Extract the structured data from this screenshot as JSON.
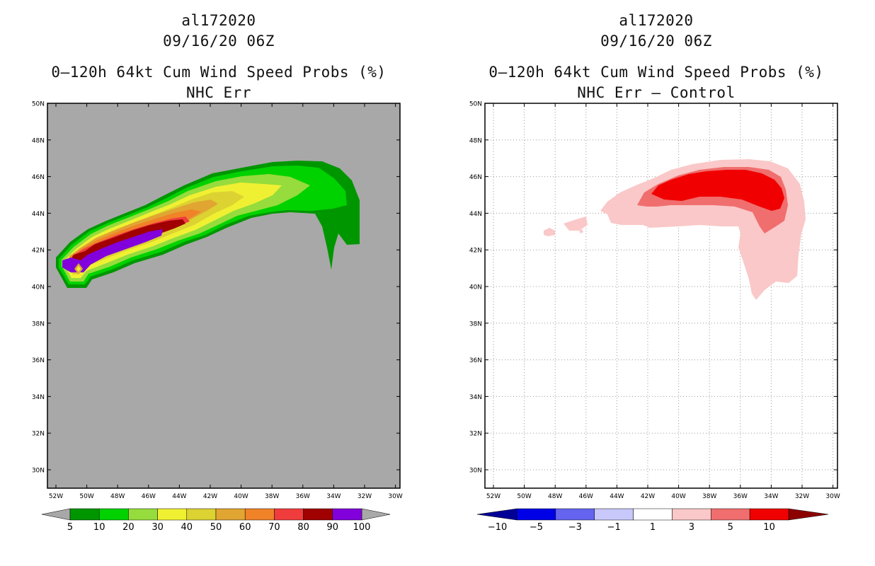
{
  "left_panel": {
    "storm_id": "al172020",
    "datetime": "09/16/20 06Z",
    "product": "0–120h 64kt Cum Wind Speed Probs (%)",
    "subtitle": "NHC Err",
    "lat_labels": [
      "50N",
      "48N",
      "46N",
      "44N",
      "42N",
      "40N",
      "38N",
      "36N",
      "34N",
      "32N",
      "30N"
    ],
    "lon_labels": [
      "52W",
      "50W",
      "48W",
      "46W",
      "44W",
      "42W",
      "40W",
      "38W",
      "36W",
      "34W",
      "32W",
      "30W"
    ],
    "colorbar": {
      "labels": [
        "5",
        "10",
        "20",
        "30",
        "40",
        "50",
        "60",
        "70",
        "80",
        "90",
        "100"
      ],
      "colors": [
        "#009600",
        "#00d200",
        "#96dc3c",
        "#f0f032",
        "#dcd232",
        "#e1a532",
        "#f08228",
        "#f03c3c",
        "#a00000",
        "#8200dc"
      ],
      "under_color": "#a8a8a8",
      "over_color": "#a8a8a8"
    }
  },
  "right_panel": {
    "storm_id": "al172020",
    "datetime": "09/16/20 06Z",
    "product": "0–120h 64kt Cum Wind Speed Probs (%)",
    "subtitle": "NHC Err – Control",
    "lat_labels": [
      "50N",
      "48N",
      "46N",
      "44N",
      "42N",
      "40N",
      "38N",
      "36N",
      "34N",
      "32N",
      "30N"
    ],
    "lon_labels": [
      "52W",
      "50W",
      "48W",
      "46W",
      "44W",
      "42W",
      "40W",
      "38W",
      "36W",
      "34W",
      "32W",
      "30W"
    ],
    "colorbar": {
      "labels": [
        "−10",
        "−5",
        "−3",
        "−1",
        "1",
        "3",
        "5",
        "10"
      ],
      "colors": [
        "#0000e6",
        "#6464f0",
        "#c8c8fa",
        "#ffffff",
        "#fac8c8",
        "#f06e6e",
        "#f00000"
      ],
      "under_color": "#000096",
      "over_color": "#8c0000"
    }
  }
}
